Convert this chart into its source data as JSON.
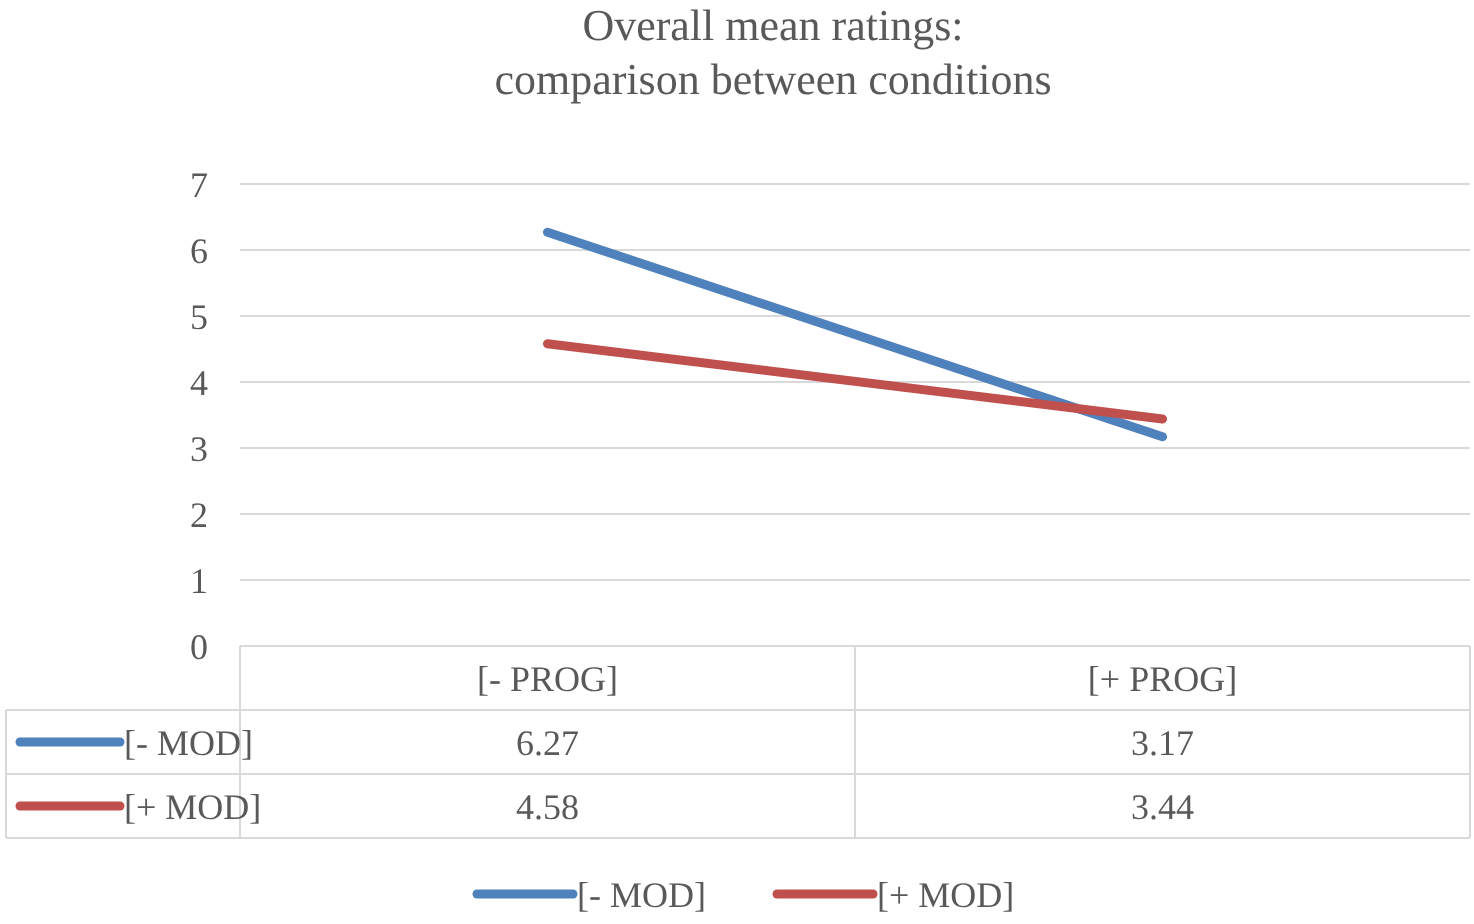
{
  "chart_data": {
    "type": "line",
    "title": "Overall mean ratings:\ncomparison between conditions",
    "categories": [
      "[- PROG]",
      "[+ PROG]"
    ],
    "series": [
      {
        "name": "[- MOD]",
        "color": "#4f81bd",
        "values": [
          6.27,
          3.17
        ]
      },
      {
        "name": "[+ MOD]",
        "color": "#c0504d",
        "values": [
          4.58,
          3.44
        ]
      }
    ],
    "ylim": [
      0,
      7
    ],
    "yticks": [
      0,
      1,
      2,
      3,
      4,
      5,
      6,
      7
    ],
    "grid": "y",
    "legend": "bottom",
    "data_labels": true
  }
}
